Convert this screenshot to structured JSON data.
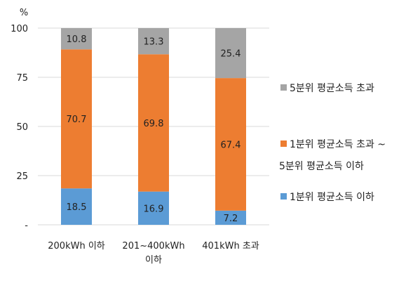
{
  "chart_data": {
    "type": "bar",
    "stacked": true,
    "ylabel": "%",
    "ylim": [
      0,
      100
    ],
    "yticks": [
      "-",
      "25",
      "50",
      "75",
      "100"
    ],
    "grid": true,
    "legend_position": "right",
    "categories": [
      [
        "200kWh 이하"
      ],
      [
        "201~400kWh",
        "이하"
      ],
      [
        "401kWh 초과"
      ]
    ],
    "series": [
      {
        "name": "1분위 평균소득 이하",
        "color": "#5B9BD5",
        "values": [
          18.5,
          16.9,
          7.2
        ]
      },
      {
        "name_lines": [
          "1분위 평균소득 초과 ~",
          "5분위 평균소득 이하"
        ],
        "color": "#ED7D31",
        "values": [
          70.7,
          69.8,
          67.4
        ]
      },
      {
        "name": "5분위 평균소득 초과",
        "color": "#A5A5A5",
        "values": [
          10.8,
          13.3,
          25.4
        ]
      }
    ]
  }
}
